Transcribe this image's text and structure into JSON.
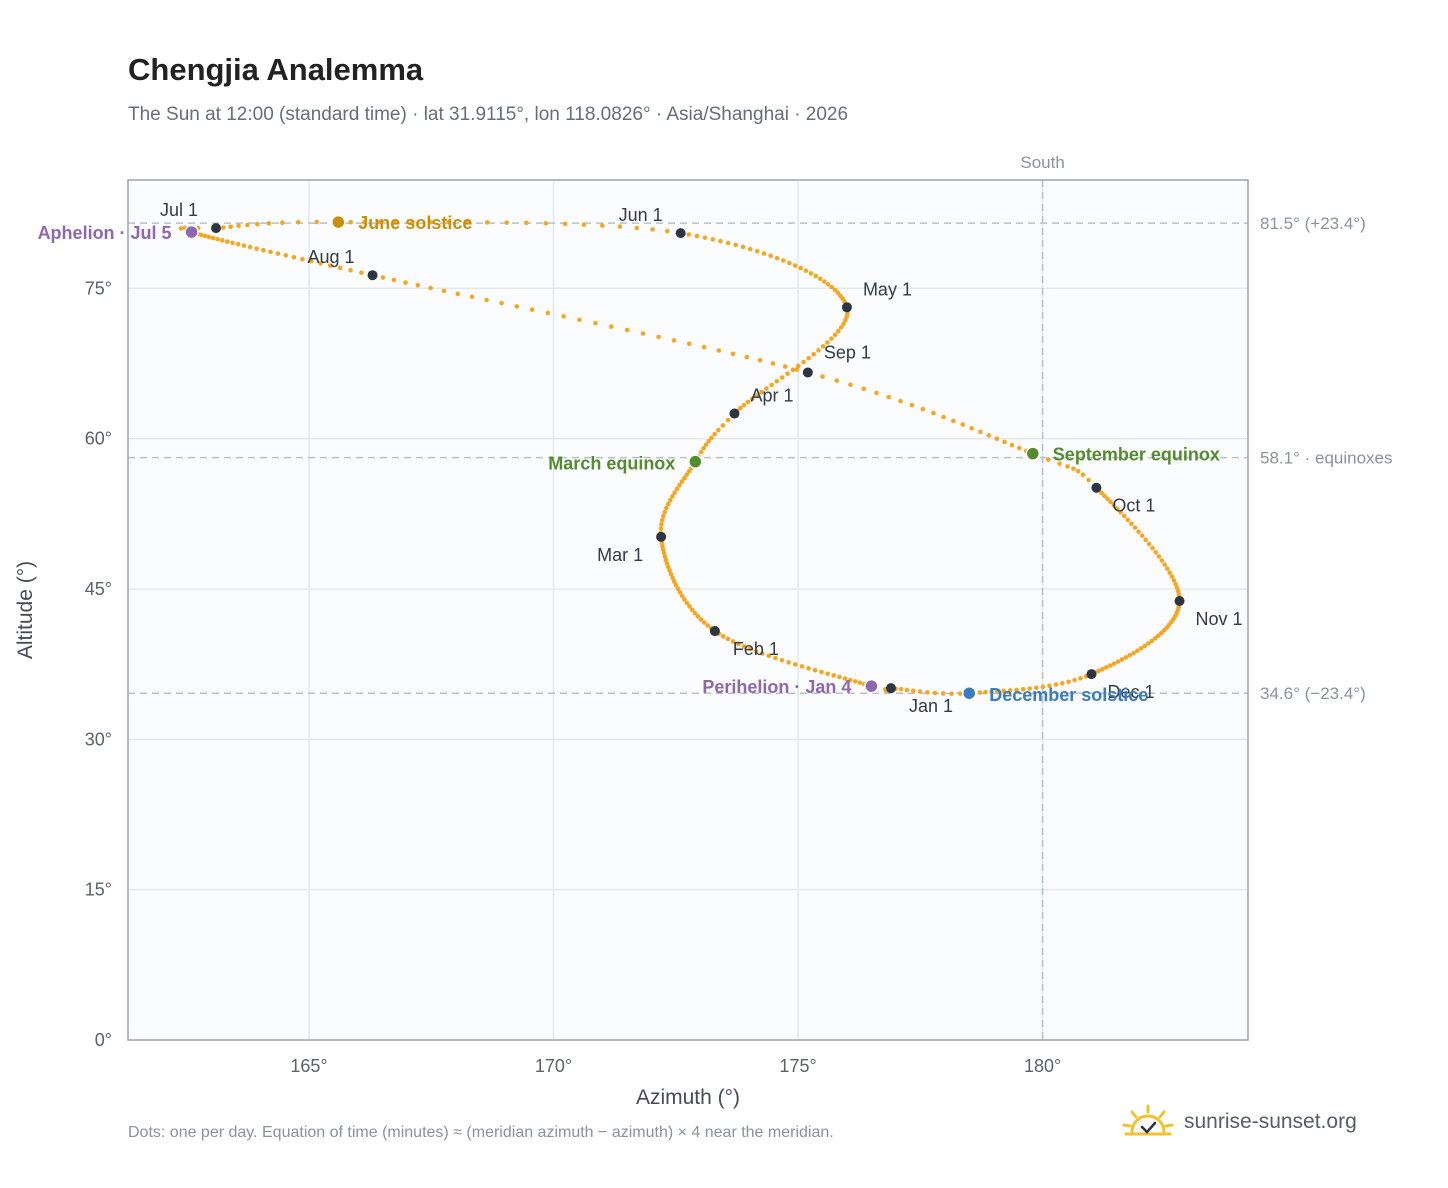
{
  "page": {
    "title": "Chengjia Analemma",
    "subtitle": "The Sun at 12:00 (standard time) · lat 31.9115°, lon 118.0826° · Asia/Shanghai · 2026",
    "footnote": "Dots: one per day. Equation of time (minutes) ≈ (meridian azimuth − azimuth) × 4 near the meridian.",
    "brand": "sunrise-sunset.org",
    "brand_icon": "sun-logo-icon"
  },
  "chart_data": {
    "type": "scatter",
    "title": "Chengjia Analemma",
    "xlabel": "Azimuth (°)",
    "ylabel": "Altitude (°)",
    "xlim": [
      161.3,
      184.2
    ],
    "ylim": [
      0,
      85.8
    ],
    "x_ticks": [
      165,
      170,
      175,
      180
    ],
    "x_tick_labels": [
      "165°",
      "170°",
      "175°",
      "180°"
    ],
    "y_ticks": [
      0,
      15,
      30,
      45,
      60,
      75
    ],
    "y_tick_labels": [
      "0°",
      "15°",
      "30°",
      "45°",
      "60°",
      "75°"
    ],
    "grid": true,
    "colors": {
      "path": "#f5a623",
      "month_marker": "#2d3540",
      "solstice_june": "#cc8f0a",
      "solstice_december": "#3a7cc0",
      "equinox": "#558b2f",
      "apsis": "#8e67b0",
      "reference_line": "#b8c0ca",
      "plot_background": "#fafcfd",
      "grid": "#e4e8ee",
      "frame": "#9aa4b0"
    },
    "meridian": {
      "azimuth": 180,
      "label": "South"
    },
    "reference_lines": [
      {
        "altitude": 81.5,
        "label": "81.5° (+23.4°)"
      },
      {
        "altitude": 58.1,
        "label": "58.1° · equinoxes"
      },
      {
        "altitude": 34.6,
        "label": "34.6° (−23.4°)"
      }
    ],
    "month_markers": [
      {
        "label": "Jan 1",
        "az": 176.9,
        "alt": 35.1
      },
      {
        "label": "Feb 1",
        "az": 173.3,
        "alt": 40.8
      },
      {
        "label": "Mar 1",
        "az": 172.2,
        "alt": 50.2
      },
      {
        "label": "Apr 1",
        "az": 173.7,
        "alt": 62.5
      },
      {
        "label": "May 1",
        "az": 176.0,
        "alt": 73.1
      },
      {
        "label": "Jun 1",
        "az": 172.6,
        "alt": 80.5
      },
      {
        "label": "Jul 1",
        "az": 163.1,
        "alt": 81.0
      },
      {
        "label": "Aug 1",
        "az": 166.3,
        "alt": 76.3
      },
      {
        "label": "Sep 1",
        "az": 175.2,
        "alt": 66.6
      },
      {
        "label": "Oct 1",
        "az": 181.1,
        "alt": 55.1
      },
      {
        "label": "Nov 1",
        "az": 182.8,
        "alt": 43.8
      },
      {
        "label": "Dec 1",
        "az": 181.0,
        "alt": 36.5
      }
    ],
    "events": [
      {
        "label": "June solstice",
        "az": 165.6,
        "alt": 81.6,
        "kind": "solstice_june"
      },
      {
        "label": "December solstice",
        "az": 178.5,
        "alt": 34.6,
        "kind": "solstice_december"
      },
      {
        "label": "March equinox",
        "az": 172.9,
        "alt": 57.7,
        "kind": "equinox"
      },
      {
        "label": "September equinox",
        "az": 179.8,
        "alt": 58.5,
        "kind": "equinox"
      },
      {
        "label": "Aphelion · Jul 5",
        "az": 162.6,
        "alt": 80.6,
        "kind": "apsis"
      },
      {
        "label": "Perihelion · Jan 4",
        "az": 176.5,
        "alt": 35.3,
        "kind": "apsis"
      }
    ]
  }
}
